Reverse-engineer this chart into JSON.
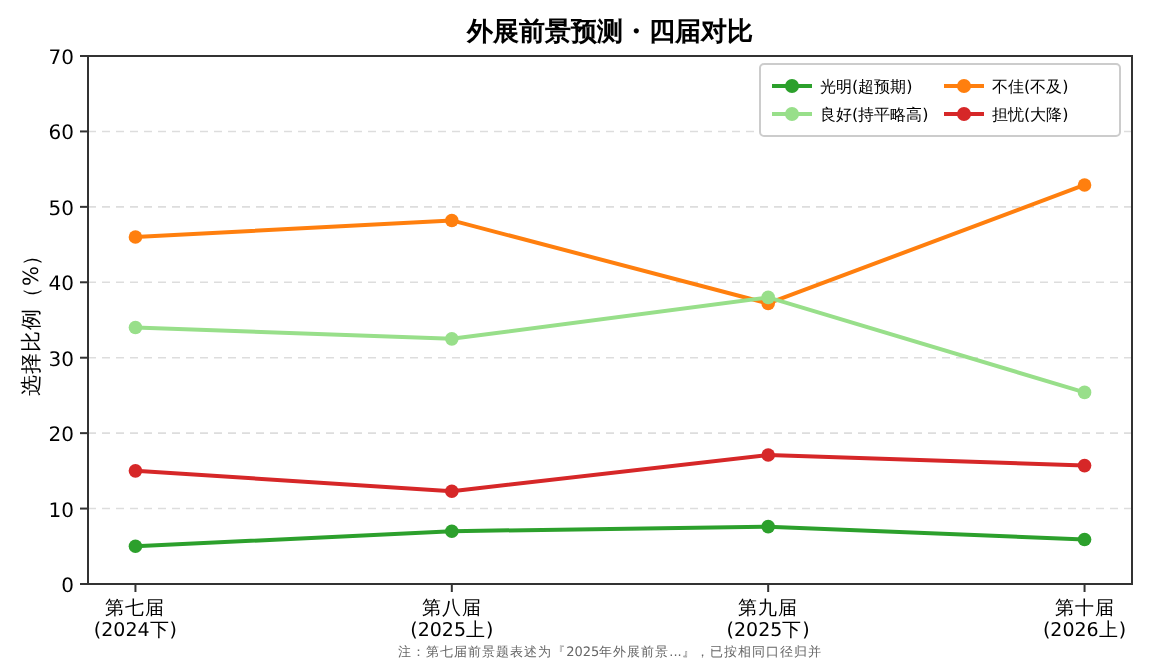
{
  "chart_data": {
    "type": "line",
    "title": "外展前景预测・四届对比",
    "ylabel": "选择比例（%）",
    "categories": [
      "第七届\n(2024下)",
      "第八届\n(2025上)",
      "第九届\n(2025下)",
      "第十届\n(2026上)"
    ],
    "series": [
      {
        "name": "光明(超预期)",
        "color": "#2ca02c",
        "values": [
          5,
          7,
          7.6,
          5.9
        ]
      },
      {
        "name": "良好(持平略高)",
        "color": "#98df8a",
        "values": [
          34,
          32.5,
          38,
          25.4
        ]
      },
      {
        "name": "不佳(不及)",
        "color": "#ff7f0e",
        "values": [
          46,
          48.2,
          37.2,
          52.9
        ]
      },
      {
        "name": "担忧(大降)",
        "color": "#d62728",
        "values": [
          15,
          12.3,
          17.1,
          15.7
        ]
      }
    ],
    "ylim": [
      0,
      70
    ],
    "yticks": [
      0,
      10,
      20,
      30,
      40,
      50,
      60,
      70
    ],
    "grid": "y",
    "legend": "top right",
    "marker": "circle",
    "line_style": "solid",
    "annotations": [
      "注：第七届前景题表述为『2025年外展前景...』，已按相同口径归并"
    ]
  }
}
